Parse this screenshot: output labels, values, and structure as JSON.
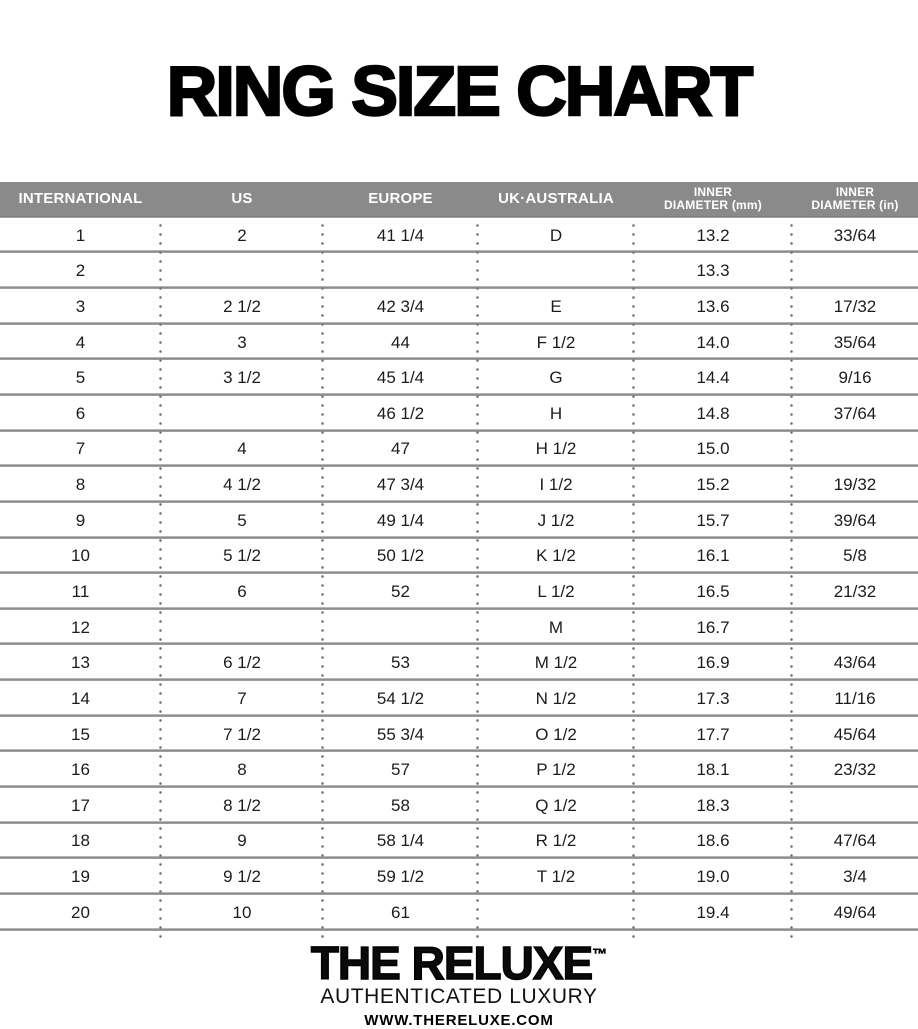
{
  "title": "RING SIZE CHART",
  "chart_data": {
    "type": "table",
    "title": "RING SIZE CHART",
    "columns": [
      "INTERNATIONAL",
      "US",
      "EUROPE",
      "UK·AUSTRALIA",
      "INNER DIAMETER (mm)",
      "INNER DIAMETER (in)"
    ],
    "rows": [
      [
        "1",
        "2",
        "41 1/4",
        "D",
        "13.2",
        "33/64"
      ],
      [
        "2",
        "",
        "",
        "",
        "13.3",
        ""
      ],
      [
        "3",
        "2 1/2",
        "42 3/4",
        "E",
        "13.6",
        "17/32"
      ],
      [
        "4",
        "3",
        "44",
        "F 1/2",
        "14.0",
        "35/64"
      ],
      [
        "5",
        "3 1/2",
        "45 1/4",
        "G",
        "14.4",
        "9/16"
      ],
      [
        "6",
        "",
        "46 1/2",
        "H",
        "14.8",
        "37/64"
      ],
      [
        "7",
        "4",
        "47",
        "H 1/2",
        "15.0",
        ""
      ],
      [
        "8",
        "4 1/2",
        "47 3/4",
        "I 1/2",
        "15.2",
        "19/32"
      ],
      [
        "9",
        "5",
        "49 1/4",
        "J 1/2",
        "15.7",
        "39/64"
      ],
      [
        "10",
        "5 1/2",
        "50 1/2",
        "K 1/2",
        "16.1",
        "5/8"
      ],
      [
        "11",
        "6",
        "52",
        "L 1/2",
        "16.5",
        "21/32"
      ],
      [
        "12",
        "",
        "",
        "M",
        "16.7",
        ""
      ],
      [
        "13",
        "6 1/2",
        "53",
        "M 1/2",
        "16.9",
        "43/64"
      ],
      [
        "14",
        "7",
        "54 1/2",
        "N 1/2",
        "17.3",
        "11/16"
      ],
      [
        "15",
        "7 1/2",
        "55 3/4",
        "O 1/2",
        "17.7",
        "45/64"
      ],
      [
        "16",
        "8",
        "57",
        "P 1/2",
        "18.1",
        "23/32"
      ],
      [
        "17",
        "8 1/2",
        "58",
        "Q 1/2",
        "18.3",
        ""
      ],
      [
        "18",
        "9",
        "58 1/4",
        "R 1/2",
        "18.6",
        "47/64"
      ],
      [
        "19",
        "9 1/2",
        "59 1/2",
        "T 1/2",
        "19.0",
        "3/4"
      ],
      [
        "20",
        "10",
        "61",
        "",
        "19.4",
        "49/64"
      ]
    ]
  },
  "table": {
    "header": [
      {
        "label": "INTERNATIONAL"
      },
      {
        "label": "US"
      },
      {
        "label": "EUROPE"
      },
      {
        "label": "UK·AUSTRALIA"
      },
      {
        "label": "INNER",
        "sublabel": "DIAMETER (mm)"
      },
      {
        "label": "INNER",
        "sublabel": "DIAMETER (in)"
      }
    ]
  },
  "footer": {
    "brand": "THE RELUXE",
    "trademark": "™",
    "tagline": "AUTHENTICATED LUXURY",
    "website": "WWW.THERELUXE.COM"
  },
  "colors": {
    "background": "#ffffff",
    "title_text": "#000000",
    "header_bg": "#8a8a8a",
    "header_text": "#ffffff",
    "row_divider": "#8f8f8f",
    "dotted_separator": "#7c7c7c",
    "cell_text": "#1c1c1c"
  }
}
